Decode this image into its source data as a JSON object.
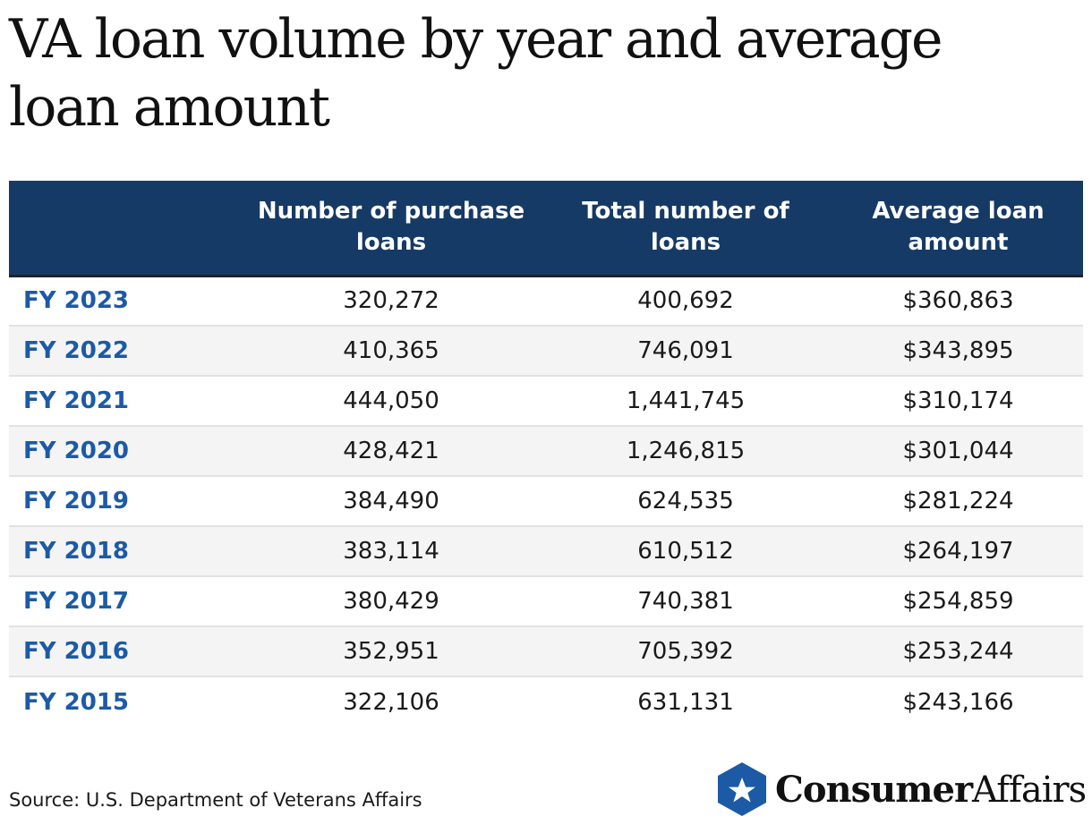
{
  "title": "VA loan volume by year and average loan amount",
  "chart_data": {
    "type": "table",
    "columns": [
      "",
      "Number of purchase loans",
      "Total number of loans",
      "Average loan amount"
    ],
    "rows": [
      [
        "FY 2023",
        "320,272",
        "400,692",
        "$360,863"
      ],
      [
        "FY 2022",
        "410,365",
        "746,091",
        "$343,895"
      ],
      [
        "FY 2021",
        "444,050",
        "1,441,745",
        "$310,174"
      ],
      [
        "FY 2020",
        "428,421",
        "1,246,815",
        "$301,044"
      ],
      [
        "FY 2019",
        "384,490",
        "624,535",
        "$281,224"
      ],
      [
        "FY 2018",
        "383,114",
        "610,512",
        "$264,197"
      ],
      [
        "FY 2017",
        "380,429",
        "740,381",
        "$254,859"
      ],
      [
        "FY 2016",
        "352,951",
        "705,392",
        "$253,244"
      ],
      [
        "FY 2015",
        "322,106",
        "631,131",
        "$243,166"
      ]
    ]
  },
  "source": "Source: U.S. Department of Veterans Affairs",
  "logo": {
    "icon": "star-shield-icon",
    "text_bold": "Consumer",
    "text_regular": "Affairs"
  },
  "colors": {
    "header_bg": "#163a66",
    "row_label": "#1c5aa6",
    "stripe": "#f4f4f4",
    "logo_blue": "#1c5aa6"
  }
}
